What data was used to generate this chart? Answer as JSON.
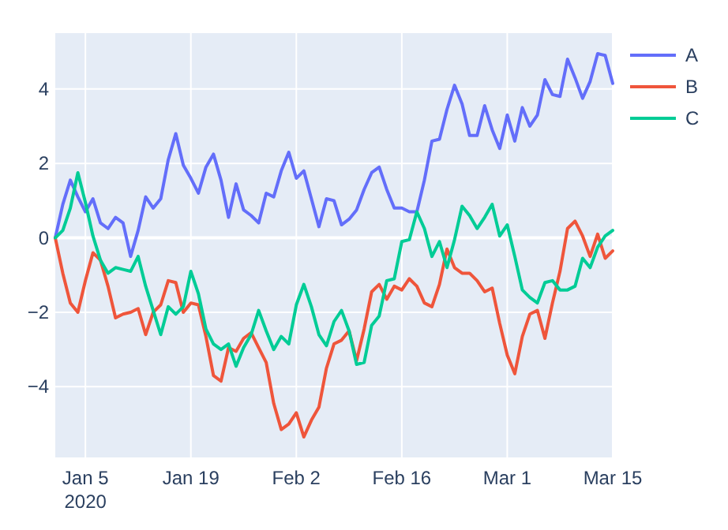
{
  "chart_data": {
    "type": "line",
    "x": [
      "2020-01-01",
      "2020-01-02",
      "2020-01-03",
      "2020-01-04",
      "2020-01-05",
      "2020-01-06",
      "2020-01-07",
      "2020-01-08",
      "2020-01-09",
      "2020-01-10",
      "2020-01-11",
      "2020-01-12",
      "2020-01-13",
      "2020-01-14",
      "2020-01-15",
      "2020-01-16",
      "2020-01-17",
      "2020-01-18",
      "2020-01-19",
      "2020-01-20",
      "2020-01-21",
      "2020-01-22",
      "2020-01-23",
      "2020-01-24",
      "2020-01-25",
      "2020-01-26",
      "2020-01-27",
      "2020-01-28",
      "2020-01-29",
      "2020-01-30",
      "2020-01-31",
      "2020-02-01",
      "2020-02-02",
      "2020-02-03",
      "2020-02-04",
      "2020-02-05",
      "2020-02-06",
      "2020-02-07",
      "2020-02-08",
      "2020-02-09",
      "2020-02-10",
      "2020-02-11",
      "2020-02-12",
      "2020-02-13",
      "2020-02-14",
      "2020-02-15",
      "2020-02-16",
      "2020-02-17",
      "2020-02-18",
      "2020-02-19",
      "2020-02-20",
      "2020-02-21",
      "2020-02-22",
      "2020-02-23",
      "2020-02-24",
      "2020-02-25",
      "2020-02-26",
      "2020-02-27",
      "2020-02-28",
      "2020-02-29",
      "2020-03-01",
      "2020-03-02",
      "2020-03-03",
      "2020-03-04",
      "2020-03-05",
      "2020-03-06",
      "2020-03-07",
      "2020-03-08",
      "2020-03-09",
      "2020-03-10",
      "2020-03-11",
      "2020-03-12",
      "2020-03-13",
      "2020-03-14",
      "2020-03-15"
    ],
    "series": [
      {
        "name": "A",
        "color": "#636efa",
        "values": [
          0,
          0.9,
          1.55,
          1.1,
          0.7,
          1.05,
          0.4,
          0.25,
          0.55,
          0.4,
          -0.5,
          0.2,
          1.1,
          0.8,
          1.05,
          2.1,
          2.8,
          1.95,
          1.6,
          1.2,
          1.9,
          2.25,
          1.55,
          0.55,
          1.45,
          0.75,
          0.6,
          0.4,
          1.2,
          1.1,
          1.8,
          2.3,
          1.6,
          1.8,
          1.05,
          0.3,
          1.05,
          1.0,
          0.35,
          0.5,
          0.75,
          1.3,
          1.75,
          1.9,
          1.3,
          0.8,
          0.8,
          0.7,
          0.7,
          1.55,
          2.6,
          2.65,
          3.45,
          4.1,
          3.6,
          2.75,
          2.75,
          3.55,
          2.9,
          2.4,
          3.3,
          2.6,
          3.5,
          3.0,
          3.3,
          4.25,
          3.85,
          3.8,
          4.8,
          4.3,
          3.75,
          4.2,
          4.95,
          4.9,
          4.15
        ]
      },
      {
        "name": "B",
        "color": "#ef553b",
        "values": [
          0,
          -0.95,
          -1.75,
          -2.0,
          -1.15,
          -0.4,
          -0.6,
          -1.3,
          -2.15,
          -2.05,
          -2.0,
          -1.9,
          -2.6,
          -2.0,
          -1.8,
          -1.15,
          -1.2,
          -2.0,
          -1.75,
          -1.8,
          -2.65,
          -3.7,
          -3.85,
          -2.95,
          -3.05,
          -2.7,
          -2.55,
          -2.95,
          -3.35,
          -4.45,
          -5.15,
          -5.0,
          -4.7,
          -5.35,
          -4.9,
          -4.55,
          -3.5,
          -2.85,
          -2.75,
          -2.5,
          -3.3,
          -2.45,
          -1.45,
          -1.25,
          -1.65,
          -1.3,
          -1.4,
          -1.1,
          -1.3,
          -1.75,
          -1.85,
          -1.25,
          -0.3,
          -0.8,
          -0.95,
          -0.95,
          -1.15,
          -1.45,
          -1.35,
          -2.3,
          -3.15,
          -3.65,
          -2.65,
          -2.05,
          -1.95,
          -2.7,
          -1.75,
          -0.9,
          0.25,
          0.45,
          0.05,
          -0.5,
          0.1,
          -0.55,
          -0.35
        ]
      },
      {
        "name": "C",
        "color": "#00cc96",
        "values": [
          0,
          0.2,
          0.8,
          1.75,
          0.95,
          0.05,
          -0.6,
          -0.95,
          -0.8,
          -0.85,
          -0.9,
          -0.5,
          -1.3,
          -1.95,
          -2.6,
          -1.85,
          -2.05,
          -1.85,
          -0.9,
          -1.5,
          -2.45,
          -2.85,
          -3.0,
          -2.85,
          -3.45,
          -2.95,
          -2.6,
          -1.95,
          -2.5,
          -3.0,
          -2.65,
          -2.85,
          -1.8,
          -1.25,
          -1.85,
          -2.6,
          -2.9,
          -2.25,
          -1.95,
          -2.5,
          -3.4,
          -3.35,
          -2.35,
          -2.1,
          -1.15,
          -1.1,
          -0.1,
          -0.05,
          0.7,
          0.25,
          -0.5,
          -0.1,
          -0.8,
          -0.05,
          0.85,
          0.6,
          0.25,
          0.55,
          0.9,
          0.05,
          0.35,
          -0.5,
          -1.4,
          -1.6,
          -1.75,
          -1.2,
          -1.15,
          -1.4,
          -1.4,
          -1.3,
          -0.55,
          -0.8,
          -0.25,
          0.05,
          0.2
        ]
      }
    ],
    "xlim": [
      "2020-01-01",
      "2020-03-15"
    ],
    "xticks": [
      {
        "value": "2020-01-05",
        "label": "Jan 5\n2020"
      },
      {
        "value": "2020-01-19",
        "label": "Jan 19"
      },
      {
        "value": "2020-02-02",
        "label": "Feb 2"
      },
      {
        "value": "2020-02-16",
        "label": "Feb 16"
      },
      {
        "value": "2020-03-01",
        "label": "Mar 1"
      },
      {
        "value": "2020-03-15",
        "label": "Mar 15"
      }
    ],
    "ylim": [
      -5.9,
      5.5
    ],
    "yticks": [
      {
        "value": -4,
        "label": "−4"
      },
      {
        "value": -2,
        "label": "−2"
      },
      0,
      2,
      4
    ],
    "grid": true,
    "legend": "right",
    "line_style": "solid"
  }
}
